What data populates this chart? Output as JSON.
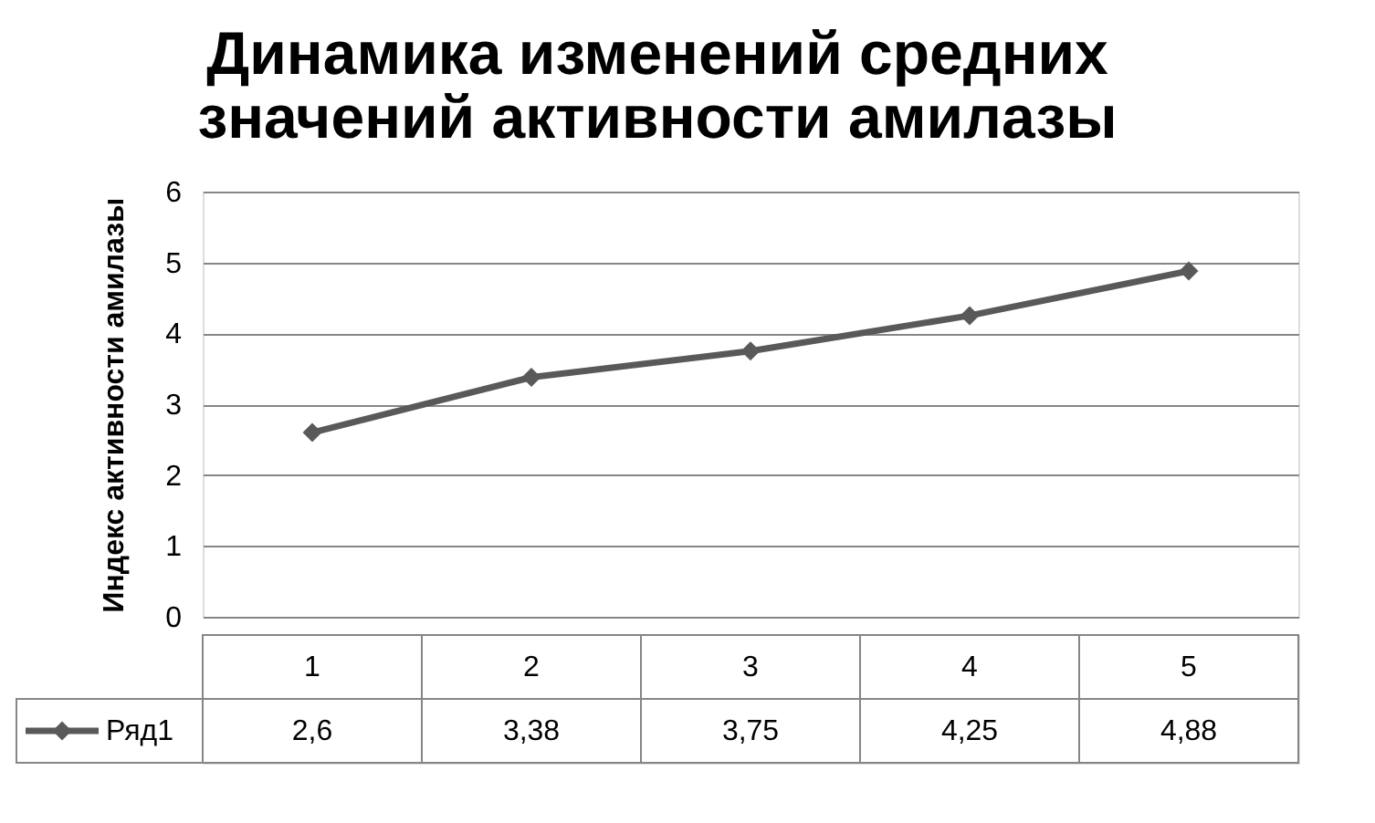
{
  "chart_data": {
    "type": "line",
    "title": "Динамика изменений средних значений активности амилазы",
    "ylabel": "Индекс активности  амилазы",
    "categories": [
      "1",
      "2",
      "3",
      "4",
      "5"
    ],
    "series": [
      {
        "name": "Ряд1",
        "color": "#595959",
        "values": [
          2.6,
          3.38,
          3.75,
          4.25,
          4.88
        ],
        "value_labels": [
          "2,6",
          "3,38",
          "3,75",
          "4,25",
          "4,88"
        ]
      }
    ],
    "ylim": [
      0,
      6
    ],
    "yticks": [
      0,
      1,
      2,
      3,
      4,
      5,
      6
    ],
    "grid": "y",
    "legend": "bottom",
    "marker": "diamond",
    "line_style": "solid"
  }
}
